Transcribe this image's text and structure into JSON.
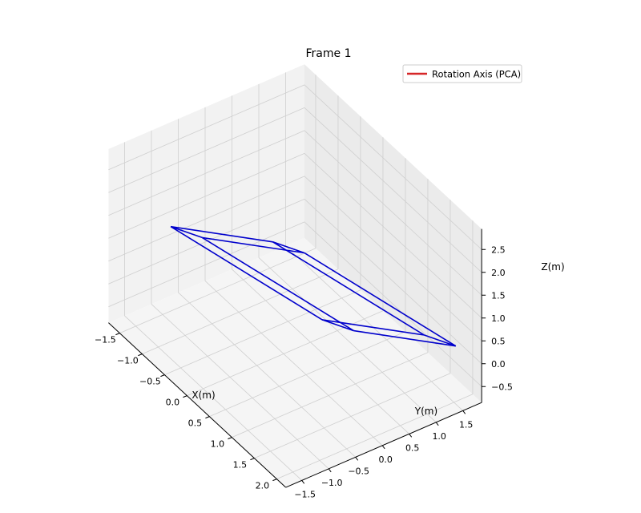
{
  "chart_data": {
    "type": "3d-line",
    "title": "Frame 1",
    "xlabel": "X(m)",
    "ylabel": "Y(m)",
    "zlabel": "Z(m)",
    "xlim": [
      -1.75,
      2.2
    ],
    "ylim": [
      -1.8,
      1.85
    ],
    "zlim": [
      -0.85,
      2.95
    ],
    "xticks": [
      -1.5,
      -1.0,
      -0.5,
      0.0,
      0.5,
      1.0,
      1.5,
      2.0
    ],
    "xtick_labels": [
      "−1.5",
      "−1.0",
      "−0.5",
      "0.0",
      "0.5",
      "1.0",
      "1.5",
      "2.0"
    ],
    "yticks": [
      -1.5,
      -1.0,
      -0.5,
      0.0,
      0.5,
      1.0,
      1.5
    ],
    "ytick_labels": [
      "−1.5",
      "−1.0",
      "−0.5",
      "0.0",
      "0.5",
      "1.0",
      "1.5"
    ],
    "zticks": [
      -0.5,
      0.0,
      0.5,
      1.0,
      1.5,
      2.0,
      2.5
    ],
    "ztick_labels": [
      "−0.5",
      "0.0",
      "0.5",
      "1.0",
      "1.5",
      "2.0",
      "2.5"
    ],
    "grid": true,
    "legend": {
      "placement": "top-right",
      "entries": [
        {
          "label": "Rotation Axis (PCA)",
          "color": "#d62728"
        }
      ]
    },
    "series": [
      {
        "kind": "wireframe-box",
        "color": "#0000cc",
        "vertices": [
          [
            -1.2,
            -1.1,
            1.4
          ],
          [
            0.1,
            -1.6,
            2.6
          ],
          [
            0.5,
            0.3,
            0.2
          ],
          [
            1.8,
            -0.2,
            1.4
          ],
          [
            -0.6,
            0.3,
            0.9
          ],
          [
            0.7,
            -0.2,
            2.1
          ],
          [
            1.1,
            1.7,
            -0.3
          ],
          [
            2.4,
            1.2,
            0.9
          ]
        ],
        "edges": [
          [
            0,
            1
          ],
          [
            0,
            2
          ],
          [
            1,
            3
          ],
          [
            2,
            3
          ],
          [
            0,
            4
          ],
          [
            1,
            5
          ],
          [
            2,
            6
          ],
          [
            3,
            7
          ],
          [
            4,
            5
          ],
          [
            4,
            6
          ],
          [
            5,
            7
          ],
          [
            6,
            7
          ]
        ]
      }
    ]
  }
}
